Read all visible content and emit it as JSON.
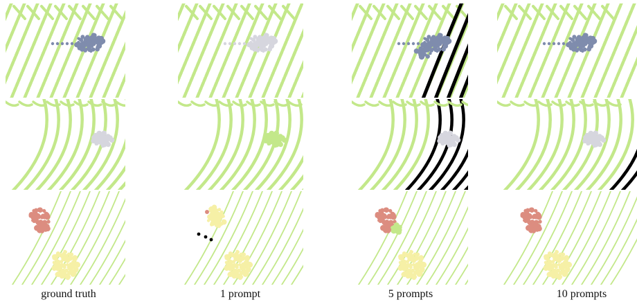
{
  "figure": {
    "columns": [
      {
        "id": "ground-truth",
        "caption": "ground truth"
      },
      {
        "id": "1-prompt",
        "caption": "1 prompt"
      },
      {
        "id": "5-prompts",
        "caption": "5 prompts"
      },
      {
        "id": "10-prompts",
        "caption": "10 prompts"
      }
    ],
    "rows": [
      "scene-1",
      "scene-2",
      "scene-3"
    ],
    "colors": {
      "road": "#c3e88a",
      "vehicle_blue": "#7f8cad",
      "vehicle_gray": "#d6d6de",
      "car_salmon": "#dc8d80",
      "truck_yellow": "#f6f0a6",
      "error_black": "#000000",
      "background": "#ffffff"
    }
  }
}
